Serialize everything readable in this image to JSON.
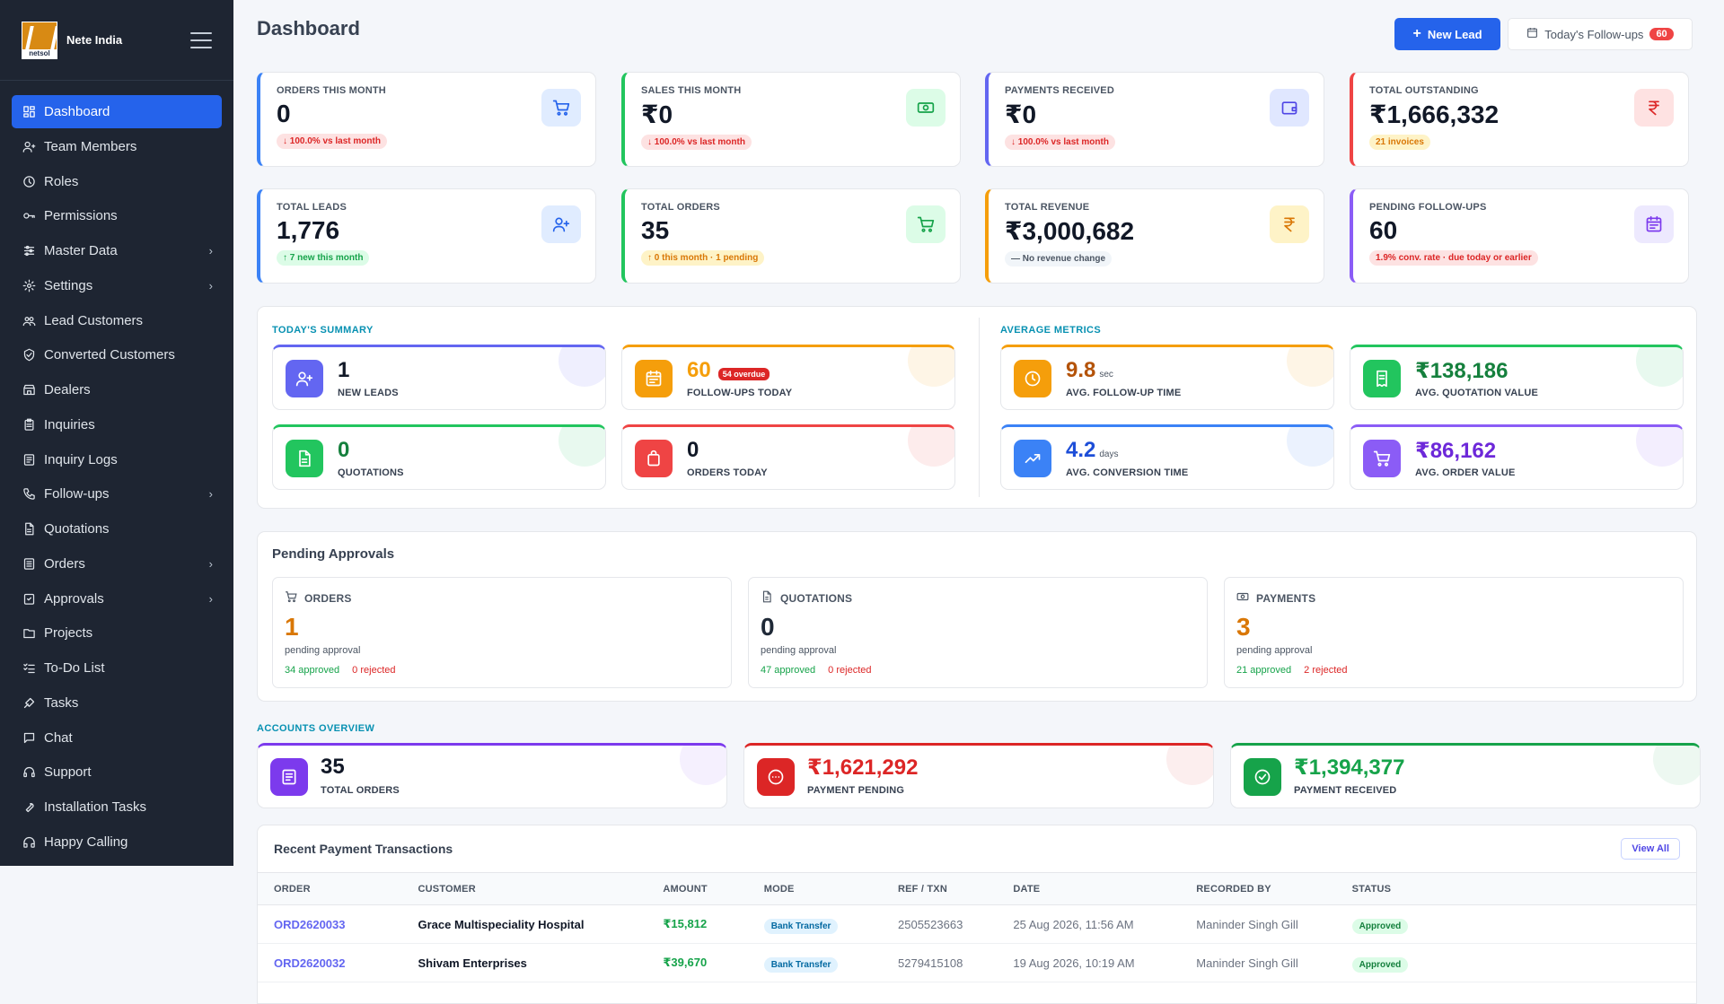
{
  "sidebar": {
    "brand": {
      "name": "Nete India",
      "logo_text": "netsol"
    },
    "items": [
      {
        "label": "Dashboard",
        "icon": "dashboard-icon",
        "active": true
      },
      {
        "label": "Team Members",
        "icon": "team-icon"
      },
      {
        "label": "Roles",
        "icon": "roles-icon"
      },
      {
        "label": "Permissions",
        "icon": "key-icon"
      },
      {
        "label": "Master Data",
        "icon": "sliders-icon",
        "chevron": true
      },
      {
        "label": "Settings",
        "icon": "gear-icon",
        "chevron": true
      },
      {
        "label": "Lead Customers",
        "icon": "users-icon"
      },
      {
        "label": "Converted Customers",
        "icon": "shield-check-icon"
      },
      {
        "label": "Dealers",
        "icon": "store-icon"
      },
      {
        "label": "Inquiries",
        "icon": "clipboard-icon"
      },
      {
        "label": "Inquiry Logs",
        "icon": "log-icon"
      },
      {
        "label": "Follow-ups",
        "icon": "phone-icon",
        "chevron": true
      },
      {
        "label": "Quotations",
        "icon": "document-icon"
      },
      {
        "label": "Orders",
        "icon": "orders-icon",
        "chevron": true
      },
      {
        "label": "Approvals",
        "icon": "approval-icon",
        "chevron": true
      },
      {
        "label": "Projects",
        "icon": "folder-icon"
      },
      {
        "label": "To-Do List",
        "icon": "checklist-icon"
      },
      {
        "label": "Tasks",
        "icon": "tasks-icon"
      },
      {
        "label": "Chat",
        "icon": "chat-icon"
      },
      {
        "label": "Support",
        "icon": "headset-icon"
      },
      {
        "label": "Installation Tasks",
        "icon": "wrench-icon"
      },
      {
        "label": "Happy Calling",
        "icon": "headphones-icon"
      }
    ]
  },
  "header": {
    "title": "Dashboard",
    "new_lead": "New Lead",
    "followups": "Today's Follow-ups",
    "followups_count": "60"
  },
  "stats": [
    {
      "label": "ORDERS THIS MONTH",
      "value": "0",
      "pill": "↓ 100.0% vs last month",
      "pill_type": "red",
      "color": "#3b82f6",
      "icon_bg": "#e0ecff",
      "icon_color": "#2563eb",
      "icon": "cart-icon"
    },
    {
      "label": "SALES THIS MONTH",
      "value": "₹0",
      "pill": "↓ 100.0% vs last month",
      "pill_type": "red",
      "color": "#22c55e",
      "icon_bg": "#dcfce7",
      "icon_color": "#16a34a",
      "icon": "cash-icon"
    },
    {
      "label": "PAYMENTS RECEIVED",
      "value": "₹0",
      "pill": "↓ 100.0% vs last month",
      "pill_type": "red",
      "color": "#6366f1",
      "icon_bg": "#e0e7ff",
      "icon_color": "#4f46e5",
      "icon": "wallet-icon"
    },
    {
      "label": "TOTAL OUTSTANDING",
      "value": "₹1,666,332",
      "pill": "21 invoices",
      "pill_type": "orange",
      "color": "#ef4444",
      "icon_bg": "#fee2e2",
      "icon_color": "#dc2626",
      "icon": "rupee-icon"
    },
    {
      "label": "TOTAL LEADS",
      "value": "1,776",
      "pill": "↑ 7 new this month",
      "pill_type": "green",
      "color": "#3b82f6",
      "icon_bg": "#e0ecff",
      "icon_color": "#2563eb",
      "icon": "user-plus-icon"
    },
    {
      "label": "TOTAL ORDERS",
      "value": "35",
      "pill": "↑ 0 this month · 1 pending",
      "pill_type": "orange",
      "color": "#22c55e",
      "icon_bg": "#dcfce7",
      "icon_color": "#16a34a",
      "icon": "cart-icon"
    },
    {
      "label": "TOTAL REVENUE",
      "value": "₹3,000,682",
      "pill": "— No revenue change",
      "pill_type": "gray",
      "color": "#f59e0b",
      "icon_bg": "#fef3c7",
      "icon_color": "#d97706",
      "icon": "rupee-icon"
    },
    {
      "label": "PENDING FOLLOW-UPS",
      "value": "60",
      "pill": "1.9% conv. rate · due today or earlier",
      "pill_type": "red",
      "color": "#8b5cf6",
      "icon_bg": "#ede9fe",
      "icon_color": "#7c3aed",
      "icon": "calendar-icon"
    }
  ],
  "summary": {
    "today_label": "TODAY'S SUMMARY",
    "avg_label": "AVERAGE METRICS",
    "today": [
      {
        "value": "1",
        "label": "NEW LEADS",
        "color": "#6366f1",
        "val_color": "#111827",
        "icon": "user-plus-icon",
        "unit": "",
        "badge": ""
      },
      {
        "value": "60",
        "label": "FOLLOW-UPS TODAY",
        "color": "#f59e0b",
        "val_color": "#f59e0b",
        "icon": "calendar-icon",
        "unit": "",
        "badge": "54 overdue"
      },
      {
        "value": "0",
        "label": "QUOTATIONS",
        "color": "#22c55e",
        "val_color": "#15803d",
        "icon": "document-icon",
        "unit": "",
        "badge": ""
      },
      {
        "value": "0",
        "label": "ORDERS TODAY",
        "color": "#ef4444",
        "val_color": "#111827",
        "icon": "bag-icon",
        "unit": "",
        "badge": ""
      }
    ],
    "avg": [
      {
        "value": "9.8",
        "unit": "sec",
        "label": "AVG. FOLLOW-UP TIME",
        "color": "#f59e0b",
        "val_color": "#b45309",
        "icon": "clock-icon",
        "badge": ""
      },
      {
        "value": "₹138,186",
        "unit": "",
        "label": "AVG. QUOTATION VALUE",
        "color": "#22c55e",
        "val_color": "#15803d",
        "icon": "receipt-icon",
        "badge": ""
      },
      {
        "value": "4.2",
        "unit": "days",
        "label": "AVG. CONVERSION TIME",
        "color": "#3b82f6",
        "val_color": "#1d4ed8",
        "icon": "trend-icon",
        "badge": ""
      },
      {
        "value": "₹86,162",
        "unit": "",
        "label": "AVG. ORDER VALUE",
        "color": "#8b5cf6",
        "val_color": "#6d28d9",
        "icon": "cart-icon",
        "badge": ""
      }
    ]
  },
  "approvals": {
    "title": "Pending Approvals",
    "items": [
      {
        "label": "ORDERS",
        "value": "1",
        "value_color": "#d97706",
        "sub": "pending approval",
        "approved": "34 approved",
        "rejected": "0 rejected",
        "icon": "cart-icon"
      },
      {
        "label": "QUOTATIONS",
        "value": "0",
        "value_color": "#1f2937",
        "sub": "pending approval",
        "approved": "47 approved",
        "rejected": "0 rejected",
        "icon": "document-icon"
      },
      {
        "label": "PAYMENTS",
        "value": "3",
        "value_color": "#d97706",
        "sub": "pending approval",
        "approved": "21 approved",
        "rejected": "2 rejected",
        "icon": "cash-icon"
      }
    ]
  },
  "accounts": {
    "label": "ACCOUNTS OVERVIEW",
    "items": [
      {
        "value": "35",
        "label": "TOTAL ORDERS",
        "color": "#7c3aed",
        "val_color": "#111827",
        "icon": "list-icon"
      },
      {
        "value": "₹1,621,292",
        "label": "PAYMENT PENDING",
        "color": "#dc2626",
        "val_color": "#dc2626",
        "icon": "dots-circle-icon"
      },
      {
        "value": "₹1,394,377",
        "label": "PAYMENT RECEIVED",
        "color": "#16a34a",
        "val_color": "#16a34a",
        "icon": "check-circle-icon"
      }
    ]
  },
  "transactions": {
    "title": "Recent Payment Transactions",
    "view_all": "View All",
    "columns": [
      "ORDER",
      "CUSTOMER",
      "AMOUNT",
      "MODE",
      "REF / TXN",
      "DATE",
      "RECORDED BY",
      "STATUS"
    ],
    "rows": [
      {
        "order": "ORD2620033",
        "customer": "Grace Multispeciality Hospital",
        "amount": "₹15,812",
        "mode": "Bank Transfer",
        "ref": "2505523663",
        "date": "25 Aug 2026, 11:56 AM",
        "by": "Maninder Singh Gill",
        "status": "Approved"
      },
      {
        "order": "ORD2620032",
        "customer": "Shivam Enterprises",
        "amount": "₹39,670",
        "mode": "Bank Transfer",
        "ref": "5279415108",
        "date": "19 Aug 2026, 10:19 AM",
        "by": "Maninder Singh Gill",
        "status": "Approved"
      }
    ]
  }
}
